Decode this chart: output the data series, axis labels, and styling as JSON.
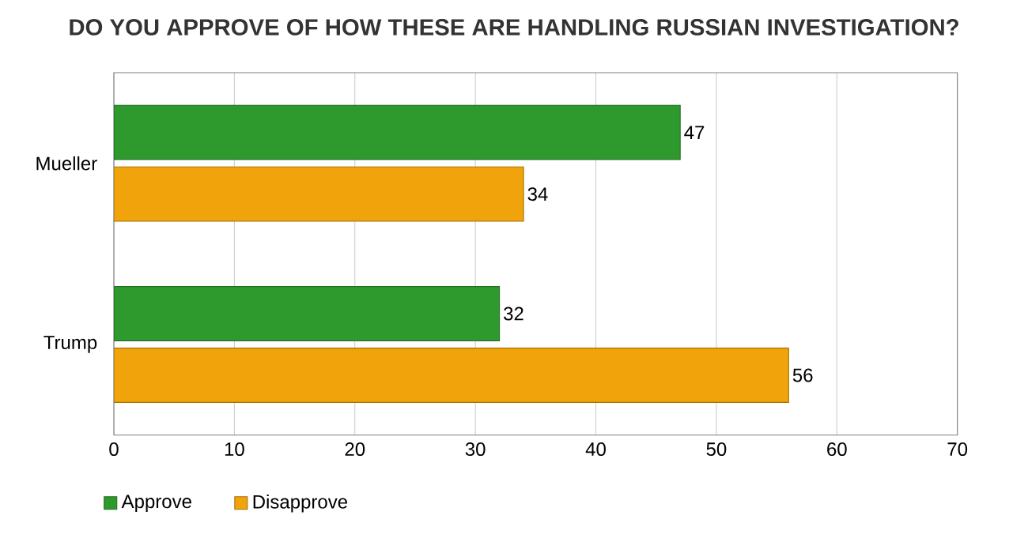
{
  "chart_data": {
    "type": "bar",
    "orientation": "horizontal",
    "title": "DO YOU APPROVE OF HOW THESE ARE HANDLING RUSSIAN INVESTIGATION?",
    "categories": [
      "Mueller",
      "Trump"
    ],
    "series": [
      {
        "name": "Approve",
        "color": "#2e9a2e",
        "values": [
          47,
          32
        ]
      },
      {
        "name": "Disapprove",
        "color": "#f0a30a",
        "values": [
          34,
          56
        ]
      }
    ],
    "xlim": [
      0,
      70
    ],
    "xticks": [
      0,
      10,
      20,
      30,
      40,
      50,
      60,
      70
    ],
    "grid": "x",
    "legend": "bottom left",
    "data_labels": true
  }
}
